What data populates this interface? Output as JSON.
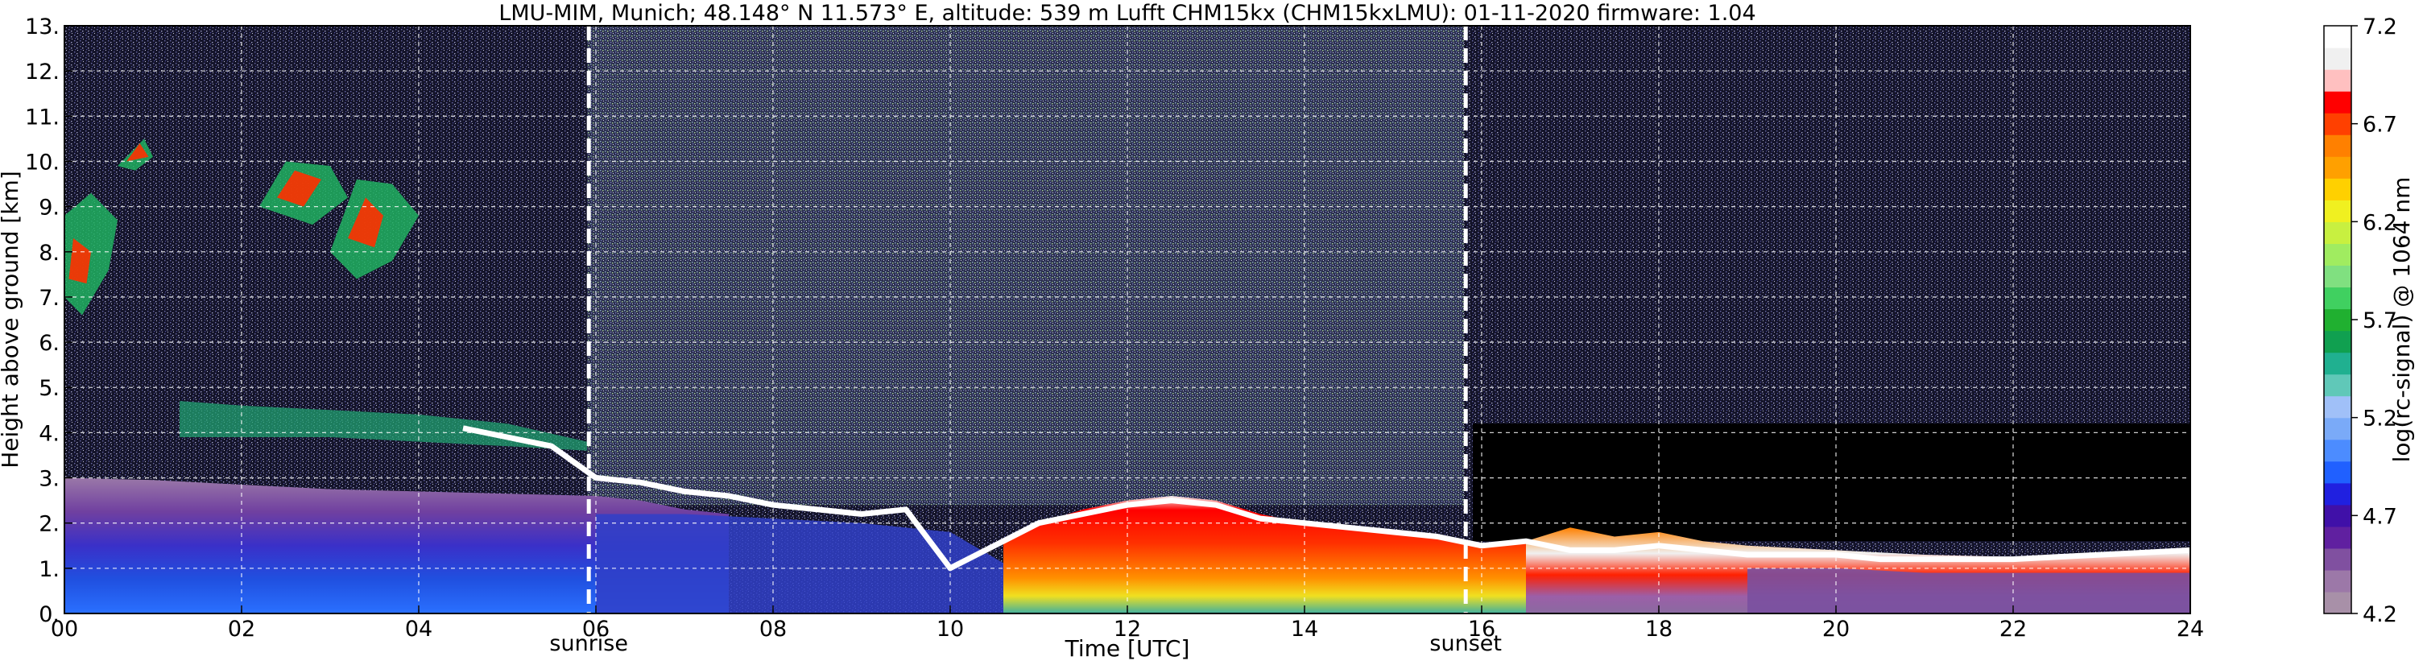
{
  "chart_data": {
    "type": "heatmap",
    "title": "LMU-MIM, Munich; 48.148° N 11.573° E, altitude: 539 m    Lufft CHM15kx (CHM15kxLMU): 01-11-2020    firmware: 1.04",
    "xlabel": "Time [UTC]",
    "ylabel": "Height above ground [km]",
    "xlim": [
      0,
      24
    ],
    "ylim": [
      0,
      13
    ],
    "x_ticks": [
      0,
      2,
      4,
      6,
      8,
      10,
      12,
      14,
      16,
      18,
      20,
      22,
      24
    ],
    "x_tick_labels": [
      "00",
      "02",
      "04",
      "06",
      "08",
      "10",
      "12",
      "14",
      "16",
      "18",
      "20",
      "22",
      "24"
    ],
    "y_ticks": [
      0,
      1,
      2,
      3,
      4,
      5,
      6,
      7,
      8,
      9,
      10,
      11,
      12,
      13
    ],
    "y_tick_labels": [
      "0.",
      "1.",
      "2.",
      "3.",
      "4.",
      "5.",
      "6.",
      "7.",
      "8.",
      "9.",
      "10.",
      "11.",
      "12.",
      "13."
    ],
    "grid": true,
    "colorbar": {
      "label": "log(rc-signal) @ 1064 nm",
      "range": [
        4.2,
        7.2
      ],
      "ticks": [
        4.2,
        4.7,
        5.2,
        5.7,
        6.2,
        6.7,
        7.2
      ],
      "tick_labels": [
        "4.2",
        "4.7",
        "5.2",
        "5.7",
        "6.2",
        "6.7",
        "7.2"
      ],
      "colors": [
        "#a890a8",
        "#9c78a8",
        "#8050a0",
        "#6020a0",
        "#4010a8",
        "#2020e0",
        "#2060ff",
        "#4c8cff",
        "#7aaaf8",
        "#a0c0f8",
        "#60c8b8",
        "#20b090",
        "#10a050",
        "#20b030",
        "#40d060",
        "#80e080",
        "#a0ec60",
        "#c8f040",
        "#f0f020",
        "#ffd000",
        "#ffa000",
        "#ff8000",
        "#ff4000",
        "#ff0000",
        "#ffc0c0",
        "#f0f0f0",
        "#ffffff"
      ]
    },
    "annotations": [
      {
        "text": "sunrise",
        "x": 5.92
      },
      {
        "text": "sunset",
        "x": 15.82
      }
    ],
    "cloud_base_x": [
      4.5,
      5,
      5.5,
      6,
      6.5,
      7,
      7.5,
      8,
      8.5,
      9,
      9.5,
      10,
      10.5,
      11,
      11.5,
      12,
      12.5,
      13,
      13.5,
      14,
      14.5,
      15,
      15.5,
      16,
      16.5,
      17,
      17.5,
      18,
      18.5,
      19,
      19.5,
      20,
      20.5,
      21,
      21.5,
      22,
      22.5,
      23,
      23.5,
      24
    ],
    "cloud_base_y": [
      4.1,
      3.9,
      3.7,
      3.0,
      2.9,
      2.7,
      2.6,
      2.4,
      2.3,
      2.2,
      2.3,
      1.0,
      1.5,
      2.0,
      2.2,
      2.4,
      2.5,
      2.4,
      2.1,
      2.0,
      1.9,
      1.8,
      1.7,
      1.5,
      1.6,
      1.4,
      1.4,
      1.5,
      1.4,
      1.3,
      1.3,
      1.3,
      1.2,
      1.2,
      1.2,
      1.2,
      1.25,
      1.3,
      1.35,
      1.4
    ]
  }
}
